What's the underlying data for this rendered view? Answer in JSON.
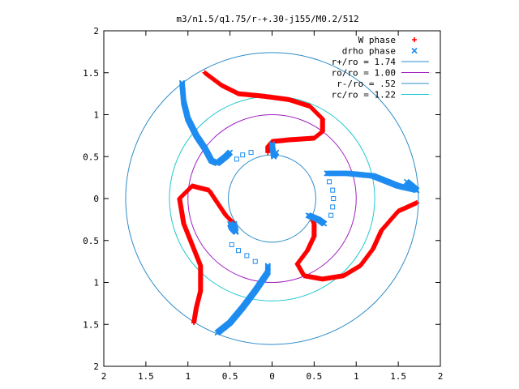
{
  "chart_data": {
    "type": "scatter",
    "title": "m3/n1.5/q1.75/r-+.30-j155/M0.2/512",
    "xlabel": "",
    "ylabel": "",
    "xlim": [
      -2,
      2
    ],
    "ylim": [
      -2,
      2
    ],
    "x_ticks": [
      -2,
      -1.5,
      -1,
      -0.5,
      0,
      0.5,
      1,
      1.5,
      2
    ],
    "y_ticks": [
      -2,
      -1.5,
      -1,
      -0.5,
      0,
      0.5,
      1,
      1.5,
      2
    ],
    "x_tick_labels": [
      "2",
      "1.5",
      "1",
      "0.5",
      "0",
      "0.5",
      "1",
      "1.5",
      "2"
    ],
    "y_tick_labels": [
      "2",
      "1.5",
      "1",
      "0.5",
      "0",
      "0.5",
      "1",
      "1.5",
      "2"
    ],
    "grid": false,
    "legend_position": "top-right",
    "series": [
      {
        "name": "W phase",
        "marker": "plus",
        "color": "#ff0000",
        "arms": [
          [
            [
              -0.8,
              1.5
            ],
            [
              -0.6,
              1.35
            ],
            [
              -0.4,
              1.25
            ],
            [
              -0.1,
              1.22
            ],
            [
              0.2,
              1.18
            ],
            [
              0.45,
              1.1
            ],
            [
              0.6,
              0.95
            ],
            [
              0.6,
              0.8
            ],
            [
              0.5,
              0.72
            ],
            [
              0.2,
              0.7
            ],
            [
              0.0,
              0.68
            ],
            [
              -0.05,
              0.62
            ],
            [
              -0.05,
              0.55
            ]
          ],
          [
            [
              -0.45,
              -0.3
            ],
            [
              -0.55,
              -0.2
            ],
            [
              -0.65,
              -0.05
            ],
            [
              -0.75,
              0.1
            ],
            [
              -0.95,
              0.15
            ],
            [
              -1.1,
              0.0
            ],
            [
              -1.05,
              -0.3
            ],
            [
              -0.95,
              -0.55
            ],
            [
              -0.85,
              -0.8
            ],
            [
              -0.85,
              -1.1
            ],
            [
              -0.9,
              -1.3
            ],
            [
              -0.93,
              -1.48
            ]
          ],
          [
            [
              1.72,
              -0.05
            ],
            [
              1.5,
              -0.15
            ],
            [
              1.3,
              -0.38
            ],
            [
              1.2,
              -0.6
            ],
            [
              1.05,
              -0.8
            ],
            [
              0.85,
              -0.92
            ],
            [
              0.6,
              -0.96
            ],
            [
              0.38,
              -0.92
            ],
            [
              0.3,
              -0.78
            ],
            [
              0.42,
              -0.62
            ],
            [
              0.5,
              -0.45
            ],
            [
              0.5,
              -0.3
            ],
            [
              0.48,
              -0.25
            ]
          ]
        ]
      },
      {
        "name": "drho phase",
        "marker": "cross",
        "color": "#1e8cf0",
        "arms": [
          [
            [
              0.65,
              0.3
            ],
            [
              0.9,
              0.3
            ],
            [
              1.2,
              0.27
            ],
            [
              1.5,
              0.15
            ],
            [
              1.72,
              0.1
            ],
            [
              1.6,
              0.2
            ]
          ],
          [
            [
              -1.07,
              1.38
            ],
            [
              -1.05,
              1.15
            ],
            [
              -1.0,
              0.95
            ],
            [
              -0.9,
              0.75
            ],
            [
              -0.8,
              0.6
            ],
            [
              -0.72,
              0.45
            ],
            [
              -0.65,
              0.42
            ],
            [
              -0.55,
              0.5
            ],
            [
              -0.5,
              0.55
            ]
          ],
          [
            [
              -0.65,
              -1.6
            ],
            [
              -0.5,
              -1.48
            ],
            [
              -0.35,
              -1.3
            ],
            [
              -0.2,
              -1.1
            ],
            [
              -0.05,
              -0.88
            ],
            [
              -0.05,
              -0.8
            ]
          ],
          [
            [
              -0.45,
              -0.3
            ],
            [
              -0.43,
              -0.4
            ],
            [
              -0.48,
              -0.35
            ],
            [
              -0.5,
              -0.3
            ]
          ],
          [
            [
              0.43,
              -0.2
            ],
            [
              0.55,
              -0.25
            ],
            [
              0.62,
              -0.3
            ]
          ],
          [
            [
              0.0,
              0.65
            ],
            [
              0.02,
              0.5
            ],
            [
              0.05,
              0.55
            ]
          ]
        ],
        "sparse_points": [
          [
            -0.25,
            0.55
          ],
          [
            -0.35,
            0.52
          ],
          [
            -0.42,
            0.47
          ],
          [
            0.68,
            0.2
          ],
          [
            0.72,
            0.1
          ],
          [
            0.73,
            0.0
          ],
          [
            0.72,
            -0.1
          ],
          [
            0.7,
            -0.2
          ],
          [
            -0.2,
            -0.75
          ],
          [
            -0.3,
            -0.68
          ],
          [
            -0.4,
            -0.62
          ],
          [
            -0.48,
            -0.55
          ]
        ]
      },
      {
        "name": "r+/ro = 1.74",
        "type": "circle",
        "radius": 1.74,
        "color": "#2d8cc8"
      },
      {
        "name": "ro/ro = 1.00",
        "type": "circle",
        "radius": 1.0,
        "color": "#a020c0"
      },
      {
        "name": "r-/ro = .52",
        "type": "circle",
        "radius": 0.52,
        "color": "#2d8cc8"
      },
      {
        "name": "rc/ro = 1.22",
        "type": "circle",
        "radius": 1.22,
        "color": "#20c8d0"
      }
    ]
  }
}
